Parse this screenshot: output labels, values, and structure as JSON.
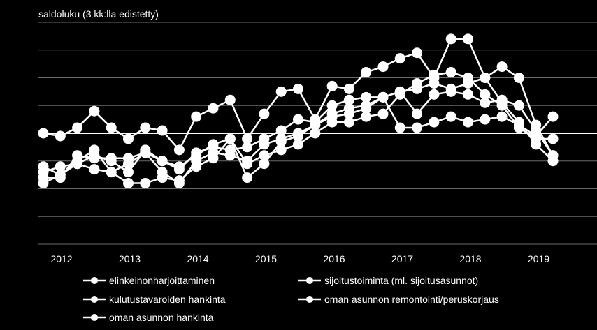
{
  "chart_data": {
    "type": "line",
    "ylabel": "saldoluku (3 kk:lla edistetty)",
    "title": "",
    "x_tick_labels": [
      "2012",
      "2013",
      "2014",
      "2015",
      "2016",
      "2017",
      "2018",
      "2019"
    ],
    "ylim": [
      -20,
      20
    ],
    "grid": true,
    "legend_position": "bottom",
    "series": [
      {
        "name": "elinkeinonharjoittaminen",
        "values": [
          0.0,
          -0.5,
          1.0,
          4.0,
          1.0,
          -1.0,
          1.0,
          0.5,
          -3.0,
          3.0,
          4.5,
          6.0,
          -1.0,
          3.5,
          7.5,
          8.0,
          2.5,
          8.5,
          8.0,
          11.0,
          12.0,
          13.5,
          14.5,
          10.0,
          17.0,
          17.0,
          10.0,
          12.0,
          10.0,
          1.5,
          -4.0
        ]
      },
      {
        "name": "sijoitustoiminta (ml. sijoitusasunnot)",
        "values": [
          -6.0,
          -7.5,
          -5.0,
          -3.0,
          -7.0,
          -9.0,
          -9.0,
          -8.0,
          -8.5,
          -6.0,
          -4.5,
          -1.0,
          -5.5,
          -4.0,
          -3.0,
          -2.0,
          0.0,
          2.0,
          2.0,
          3.0,
          3.5,
          7.0,
          9.0,
          10.5,
          11.0,
          10.0,
          7.0,
          5.0,
          1.0,
          -1.0,
          -1.0
        ]
      },
      {
        "name": "kulutustavaroiden hankinta",
        "values": [
          -9.0,
          -7.5,
          -5.5,
          -6.5,
          -7.0,
          -5.5,
          -3.5,
          -5.0,
          -6.0,
          -4.0,
          -2.0,
          -1.0,
          -8.0,
          -5.5,
          -1.5,
          -0.5,
          1.5,
          3.5,
          4.5,
          5.0,
          6.5,
          7.5,
          3.5,
          7.0,
          7.5,
          7.0,
          5.5,
          6.0,
          5.0,
          0.5,
          -4.0
        ]
      },
      {
        "name": "oman asunnon remontointi/peruskorjaus",
        "values": [
          -8.0,
          -8.0,
          -4.0,
          -4.5,
          -4.5,
          -4.5,
          -3.5,
          -7.0,
          -9.0,
          -5.0,
          -3.5,
          -4.0,
          -5.0,
          -2.0,
          -1.0,
          0.0,
          1.5,
          3.0,
          3.5,
          4.5,
          6.5,
          1.0,
          1.0,
          2.0,
          3.0,
          2.0,
          2.5,
          3.0,
          1.5,
          -0.5,
          3.0
        ]
      },
      {
        "name": "oman asunnon hankinta",
        "values": [
          -7.0,
          -6.0,
          -5.5,
          -4.0,
          -5.0,
          -7.0,
          -3.0,
          -5.0,
          -6.5,
          -3.5,
          -2.5,
          -3.0,
          -2.5,
          -1.0,
          0.5,
          2.5,
          2.0,
          5.0,
          6.0,
          6.5,
          6.5,
          7.5,
          8.0,
          9.0,
          8.0,
          9.0,
          10.0,
          5.5,
          2.0,
          -2.0,
          -5.0
        ]
      }
    ]
  },
  "legend": [
    {
      "label": "elinkeinonharjoittaminen"
    },
    {
      "label": "sijoitustoiminta (ml. sijoitusasunnot)"
    },
    {
      "label": "kulutustavaroiden hankinta"
    },
    {
      "label": "oman asunnon remontointi/peruskorjaus"
    },
    {
      "label": "oman asunnon hankinta"
    }
  ],
  "colors": {
    "background": "#000000",
    "line": "#ffffff",
    "grid": "#6a6a6a"
  }
}
